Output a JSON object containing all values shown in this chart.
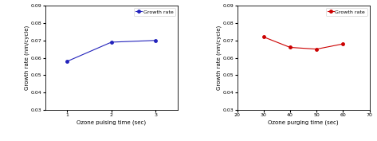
{
  "left": {
    "x": [
      1,
      2,
      3
    ],
    "y": [
      0.058,
      0.069,
      0.07
    ],
    "color": "#2222bb",
    "xlabel": "Ozone pulsing time (sec)",
    "ylabel": "Growth rate (nm/cycle)",
    "xlim": [
      0.5,
      3.5
    ],
    "ylim": [
      0.03,
      0.09
    ],
    "xticks": [
      1,
      2,
      3
    ],
    "yticks": [
      0.03,
      0.04,
      0.05,
      0.06,
      0.07,
      0.08,
      0.09
    ],
    "legend_label": "Growth rate"
  },
  "right": {
    "x": [
      30,
      40,
      50,
      60
    ],
    "y": [
      0.072,
      0.066,
      0.065,
      0.068
    ],
    "color": "#cc0000",
    "xlabel": "Ozone purging time (sec)",
    "ylabel": "Growth rate (nm/cycle)",
    "xlim": [
      20,
      70
    ],
    "ylim": [
      0.03,
      0.09
    ],
    "xticks": [
      20,
      30,
      40,
      50,
      60,
      70
    ],
    "yticks": [
      0.03,
      0.04,
      0.05,
      0.06,
      0.07,
      0.08,
      0.09
    ],
    "legend_label": "Growth rate"
  },
  "fig_width": 4.73,
  "fig_height": 1.77,
  "dpi": 100
}
